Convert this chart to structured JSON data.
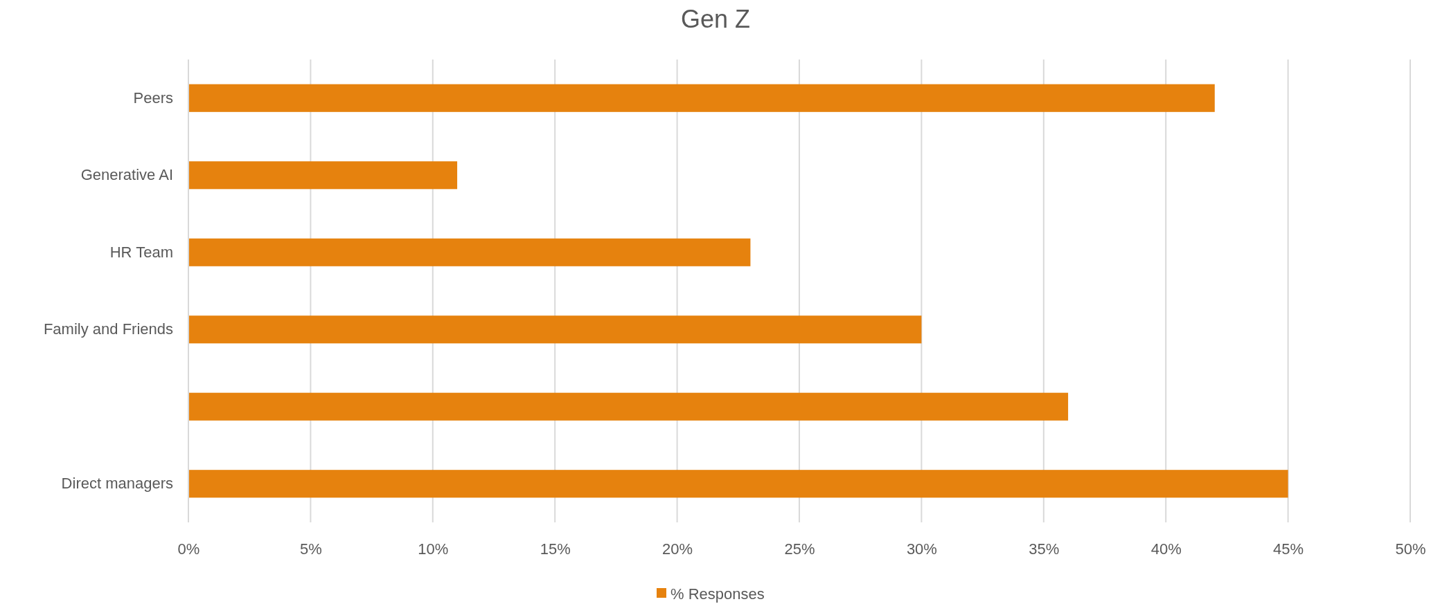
{
  "chart_data": {
    "type": "bar",
    "orientation": "horizontal",
    "title": "Gen Z",
    "categories": [
      "Peers",
      "Generative AI",
      "HR Team",
      "Family and Friends",
      null,
      "Direct managers"
    ],
    "series": [
      {
        "name": "% Responses",
        "color": "#e6820e",
        "values": [
          42,
          11,
          23,
          30,
          36,
          45
        ]
      }
    ],
    "xlim": [
      0,
      50
    ],
    "xticks": [
      {
        "value": 0,
        "label": "0%"
      },
      {
        "value": 5,
        "label": "5%"
      },
      {
        "value": 10,
        "label": "10%"
      },
      {
        "value": 15,
        "label": "15%"
      },
      {
        "value": 20,
        "label": "20%"
      },
      {
        "value": 25,
        "label": "25%"
      },
      {
        "value": 30,
        "label": "30%"
      },
      {
        "value": 35,
        "label": "35%"
      },
      {
        "value": 40,
        "label": "40%"
      },
      {
        "value": 45,
        "label": "45%"
      },
      {
        "value": 50,
        "label": "50%"
      }
    ],
    "grid": "x",
    "legend": "bottom"
  }
}
